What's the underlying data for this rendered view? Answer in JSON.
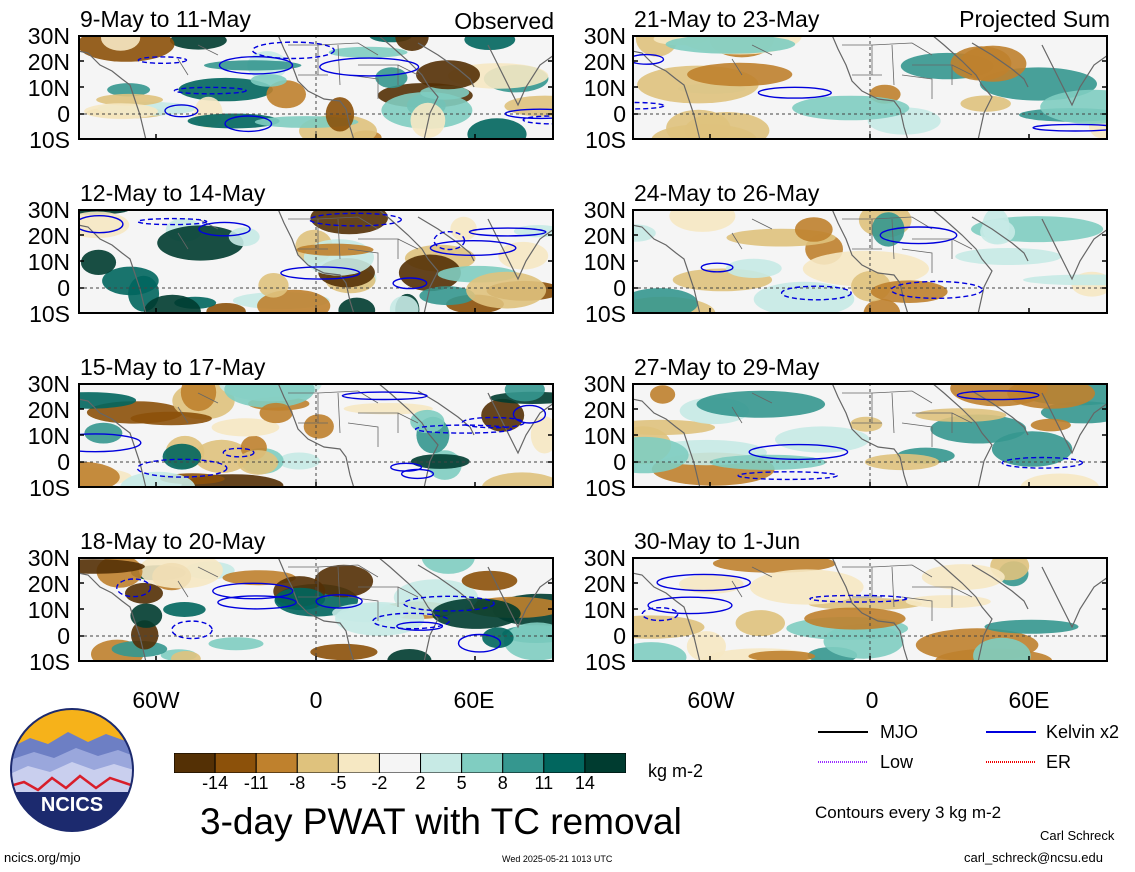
{
  "panels": {
    "observed": [
      {
        "title": "9-May to 11-May",
        "tag": "Observed"
      },
      {
        "title": "12-May to 14-May"
      },
      {
        "title": "15-May to 17-May"
      },
      {
        "title": "18-May to 20-May"
      }
    ],
    "projected": [
      {
        "title": "21-May to 23-May",
        "tag": "Projected Sum"
      },
      {
        "title": "24-May to 26-May"
      },
      {
        "title": "27-May to 29-May"
      },
      {
        "title": "30-May to 1-Jun"
      }
    ]
  },
  "lat_labels": [
    "30N",
    "20N",
    "10N",
    "0",
    "10S"
  ],
  "lon_labels": [
    "60W",
    "0",
    "60E"
  ],
  "colorbar": {
    "ticks": [
      "-14",
      "-11",
      "-8",
      "-5",
      "-2",
      "2",
      "5",
      "8",
      "11",
      "14"
    ],
    "colors": [
      "#543005",
      "#8c510a",
      "#bf812d",
      "#dfc27d",
      "#f6e8c3",
      "#f5f5f5",
      "#c7eae5",
      "#80cdc1",
      "#35978f",
      "#01665e",
      "#003c30"
    ],
    "units": "kg m-2"
  },
  "title": "3-day PWAT with TC removal",
  "legend": {
    "items": [
      {
        "label": "MJO",
        "color": "#000000"
      },
      {
        "label": "Kelvin x2",
        "color": "#0000dd"
      },
      {
        "label": "Low",
        "color": "#9b30ff"
      },
      {
        "label": "ER",
        "color": "#ee0000"
      }
    ],
    "note": "Contours every 3 kg m-2"
  },
  "logo": {
    "text": "NCICS"
  },
  "footer": {
    "left": "ncics.org/mjo",
    "center": "Wed 2025-05-21 1013 UTC",
    "author": "Carl Schreck",
    "email": "carl_schreck@ncsu.edu"
  }
}
